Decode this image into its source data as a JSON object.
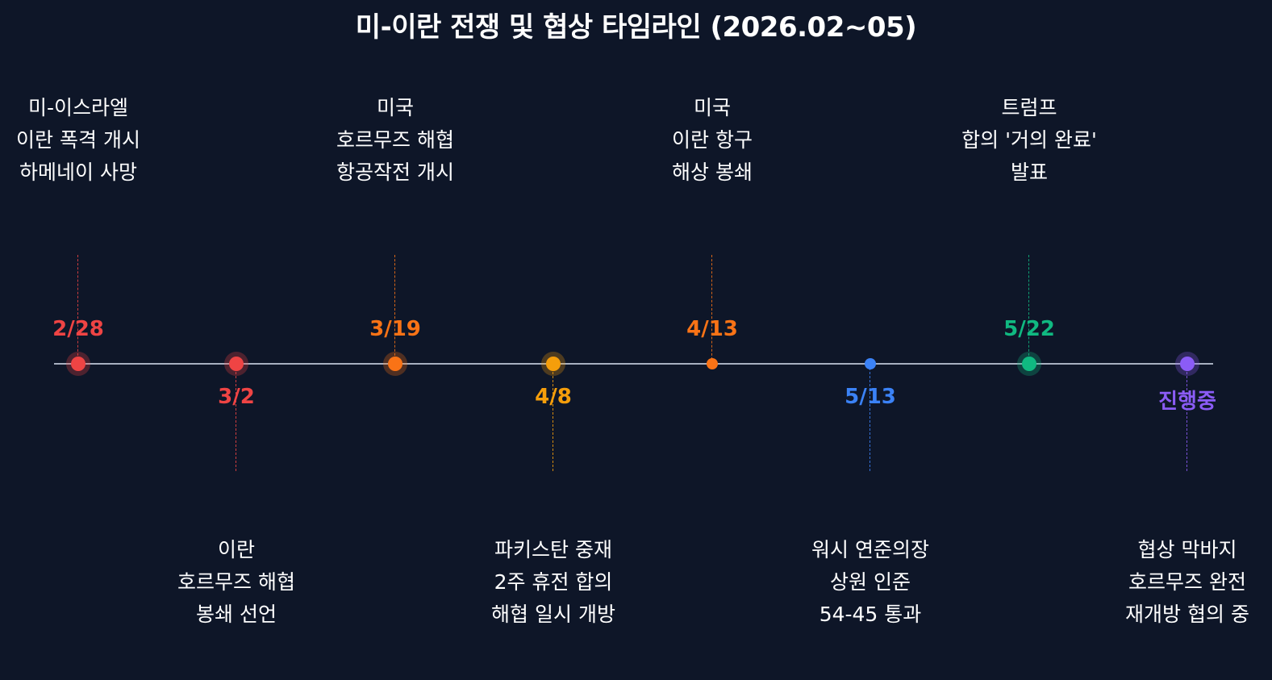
{
  "title": "미-이란 전쟁 및 협상 타임라인 (2026.02~05)",
  "events": [
    {
      "date": "2/28",
      "color": "#ef4444",
      "lines": [
        "미-이스라엘",
        "이란 폭격 개시",
        "하메네이 사망"
      ]
    },
    {
      "date": "3/2",
      "color": "#ef4444",
      "lines": [
        "이란",
        "호르무즈 해협",
        "봉쇄 선언"
      ]
    },
    {
      "date": "3/19",
      "color": "#f97316",
      "lines": [
        "미국",
        "호르무즈 해협",
        "항공작전 개시"
      ]
    },
    {
      "date": "4/8",
      "color": "#f59e0b",
      "lines": [
        "파키스탄 중재",
        "2주 휴전 합의",
        "해협 일시 개방"
      ]
    },
    {
      "date": "4/13",
      "color": "#f97316",
      "lines": [
        "미국",
        "이란 항구",
        "해상 봉쇄"
      ]
    },
    {
      "date": "5/13",
      "color": "#3b82f6",
      "lines": [
        "워시 연준의장",
        "상원 인준",
        "54-45 통과"
      ]
    },
    {
      "date": "5/22",
      "color": "#10b981",
      "lines": [
        "트럼프",
        "합의 '거의 완료'",
        "발표"
      ]
    },
    {
      "date": "진행중",
      "color": "#8b5cf6",
      "lines": [
        "협상 막바지",
        "호르무즈 완전",
        "재개방 협의 중"
      ]
    }
  ]
}
